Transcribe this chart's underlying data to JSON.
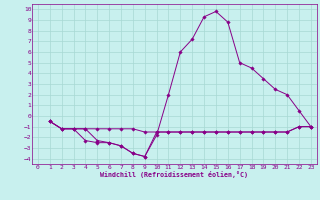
{
  "xlabel": "Windchill (Refroidissement éolien,°C)",
  "bg_color": "#c8f0ee",
  "grid_color": "#a8d8d4",
  "line_color": "#880088",
  "xlim": [
    -0.5,
    23.5
  ],
  "ylim": [
    -4.5,
    10.5
  ],
  "xticks": [
    0,
    1,
    2,
    3,
    4,
    5,
    6,
    7,
    8,
    9,
    10,
    11,
    12,
    13,
    14,
    15,
    16,
    17,
    18,
    19,
    20,
    21,
    22,
    23
  ],
  "yticks": [
    -4,
    -3,
    -2,
    -1,
    0,
    1,
    2,
    3,
    4,
    5,
    6,
    7,
    8,
    9,
    10
  ],
  "line1_x": [
    1,
    2,
    3,
    4,
    5,
    6,
    7,
    8,
    9,
    10,
    11,
    12,
    13,
    14,
    15,
    16,
    17,
    18,
    19,
    20,
    21,
    22,
    23
  ],
  "line1_y": [
    -0.5,
    -1.2,
    -1.2,
    -1.2,
    -1.2,
    -1.2,
    -1.2,
    -1.2,
    -1.5,
    -1.5,
    -1.5,
    -1.5,
    -1.5,
    -1.5,
    -1.5,
    -1.5,
    -1.5,
    -1.5,
    -1.5,
    -1.5,
    -1.5,
    -1.0,
    -1.0
  ],
  "line2_x": [
    1,
    2,
    3,
    4,
    5,
    6,
    7,
    8,
    9,
    10,
    11,
    12,
    13,
    14,
    15,
    16,
    17,
    18,
    19,
    20,
    21,
    22,
    23
  ],
  "line2_y": [
    -0.5,
    -1.2,
    -1.2,
    -2.3,
    -2.5,
    -2.5,
    -2.8,
    -3.5,
    -3.8,
    -1.5,
    -1.5,
    -1.5,
    -1.5,
    -1.5,
    -1.5,
    -1.5,
    -1.5,
    -1.5,
    -1.5,
    -1.5,
    -1.5,
    -1.0,
    -1.0
  ],
  "line3_x": [
    1,
    2,
    3,
    4,
    5,
    6,
    7,
    8,
    9,
    10,
    11,
    12,
    13,
    14,
    15,
    16,
    17,
    18,
    19,
    20,
    21,
    22,
    23
  ],
  "line3_y": [
    -0.5,
    -1.2,
    -1.2,
    -1.2,
    -2.3,
    -2.5,
    -2.8,
    -3.5,
    -3.8,
    -1.8,
    2.0,
    6.0,
    7.2,
    9.3,
    9.8,
    8.8,
    5.0,
    4.5,
    3.5,
    2.5,
    2.0,
    0.5,
    -1.0
  ]
}
